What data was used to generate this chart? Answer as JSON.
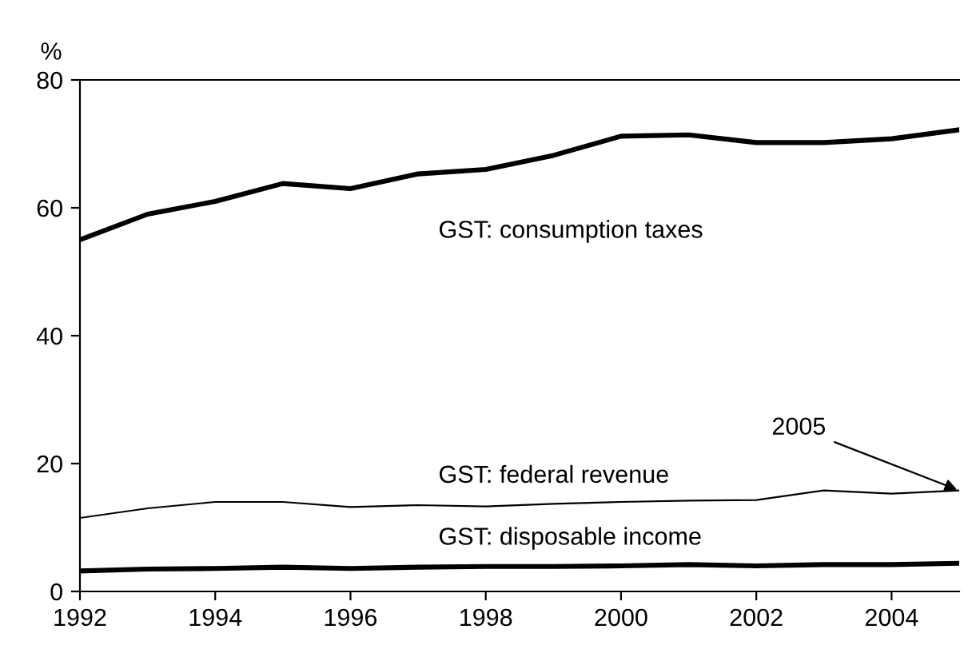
{
  "chart_data": {
    "type": "line",
    "ylabel": "%",
    "x": [
      1992,
      1993,
      1994,
      1995,
      1996,
      1997,
      1998,
      1999,
      2000,
      2001,
      2002,
      2003,
      2004,
      2005
    ],
    "series": [
      {
        "name": "GST: consumption taxes",
        "color": "#000000",
        "values": [
          55,
          59,
          61,
          63.8,
          63,
          65.3,
          66,
          68.2,
          71.2,
          71.4,
          70.2,
          70.2,
          70.8,
          72.2
        ]
      },
      {
        "name": "GST: federal revenue",
        "color": "#000000",
        "values": [
          11.5,
          13,
          14,
          14,
          13.2,
          13.5,
          13.3,
          13.7,
          14,
          14.2,
          14.3,
          15.8,
          15.3,
          15.8
        ]
      },
      {
        "name": "GST: disposable income",
        "color": "#000000",
        "values": [
          3.2,
          3.5,
          3.6,
          3.8,
          3.6,
          3.8,
          3.9,
          3.9,
          4.0,
          4.2,
          4.0,
          4.2,
          4.2,
          4.4
        ]
      }
    ],
    "annotations": [
      {
        "text": "2005",
        "x": 2005,
        "y": 15.8
      }
    ],
    "xlim": [
      1992,
      2005
    ],
    "xticks": [
      1992,
      1994,
      1996,
      1998,
      2000,
      2002,
      2004
    ],
    "ylim": [
      0,
      80
    ],
    "yticks": [
      0,
      20,
      40,
      60,
      80
    ],
    "grid": false,
    "legend": false,
    "marker": "none",
    "line_style": "solid"
  }
}
